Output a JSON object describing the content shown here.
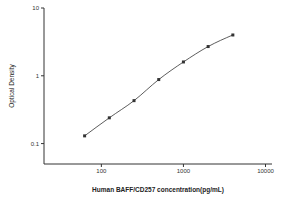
{
  "chart_data": {
    "type": "line",
    "x": [
      62.5,
      125,
      250,
      500,
      1000,
      2000,
      4000
    ],
    "values": [
      0.13,
      0.24,
      0.43,
      0.88,
      1.6,
      2.7,
      4.0
    ],
    "x_label": "Human BAFF/CD257 concentration(pg/mL)",
    "y_label": "Optical Density",
    "log": true,
    "xlim": [
      20,
      12000
    ],
    "xticks": [
      100,
      1000,
      10000
    ],
    "ylim": [
      0.05,
      10
    ],
    "yticks": [
      0.1,
      1,
      10
    ],
    "color": "#333333",
    "marker": "square",
    "grid": false
  }
}
